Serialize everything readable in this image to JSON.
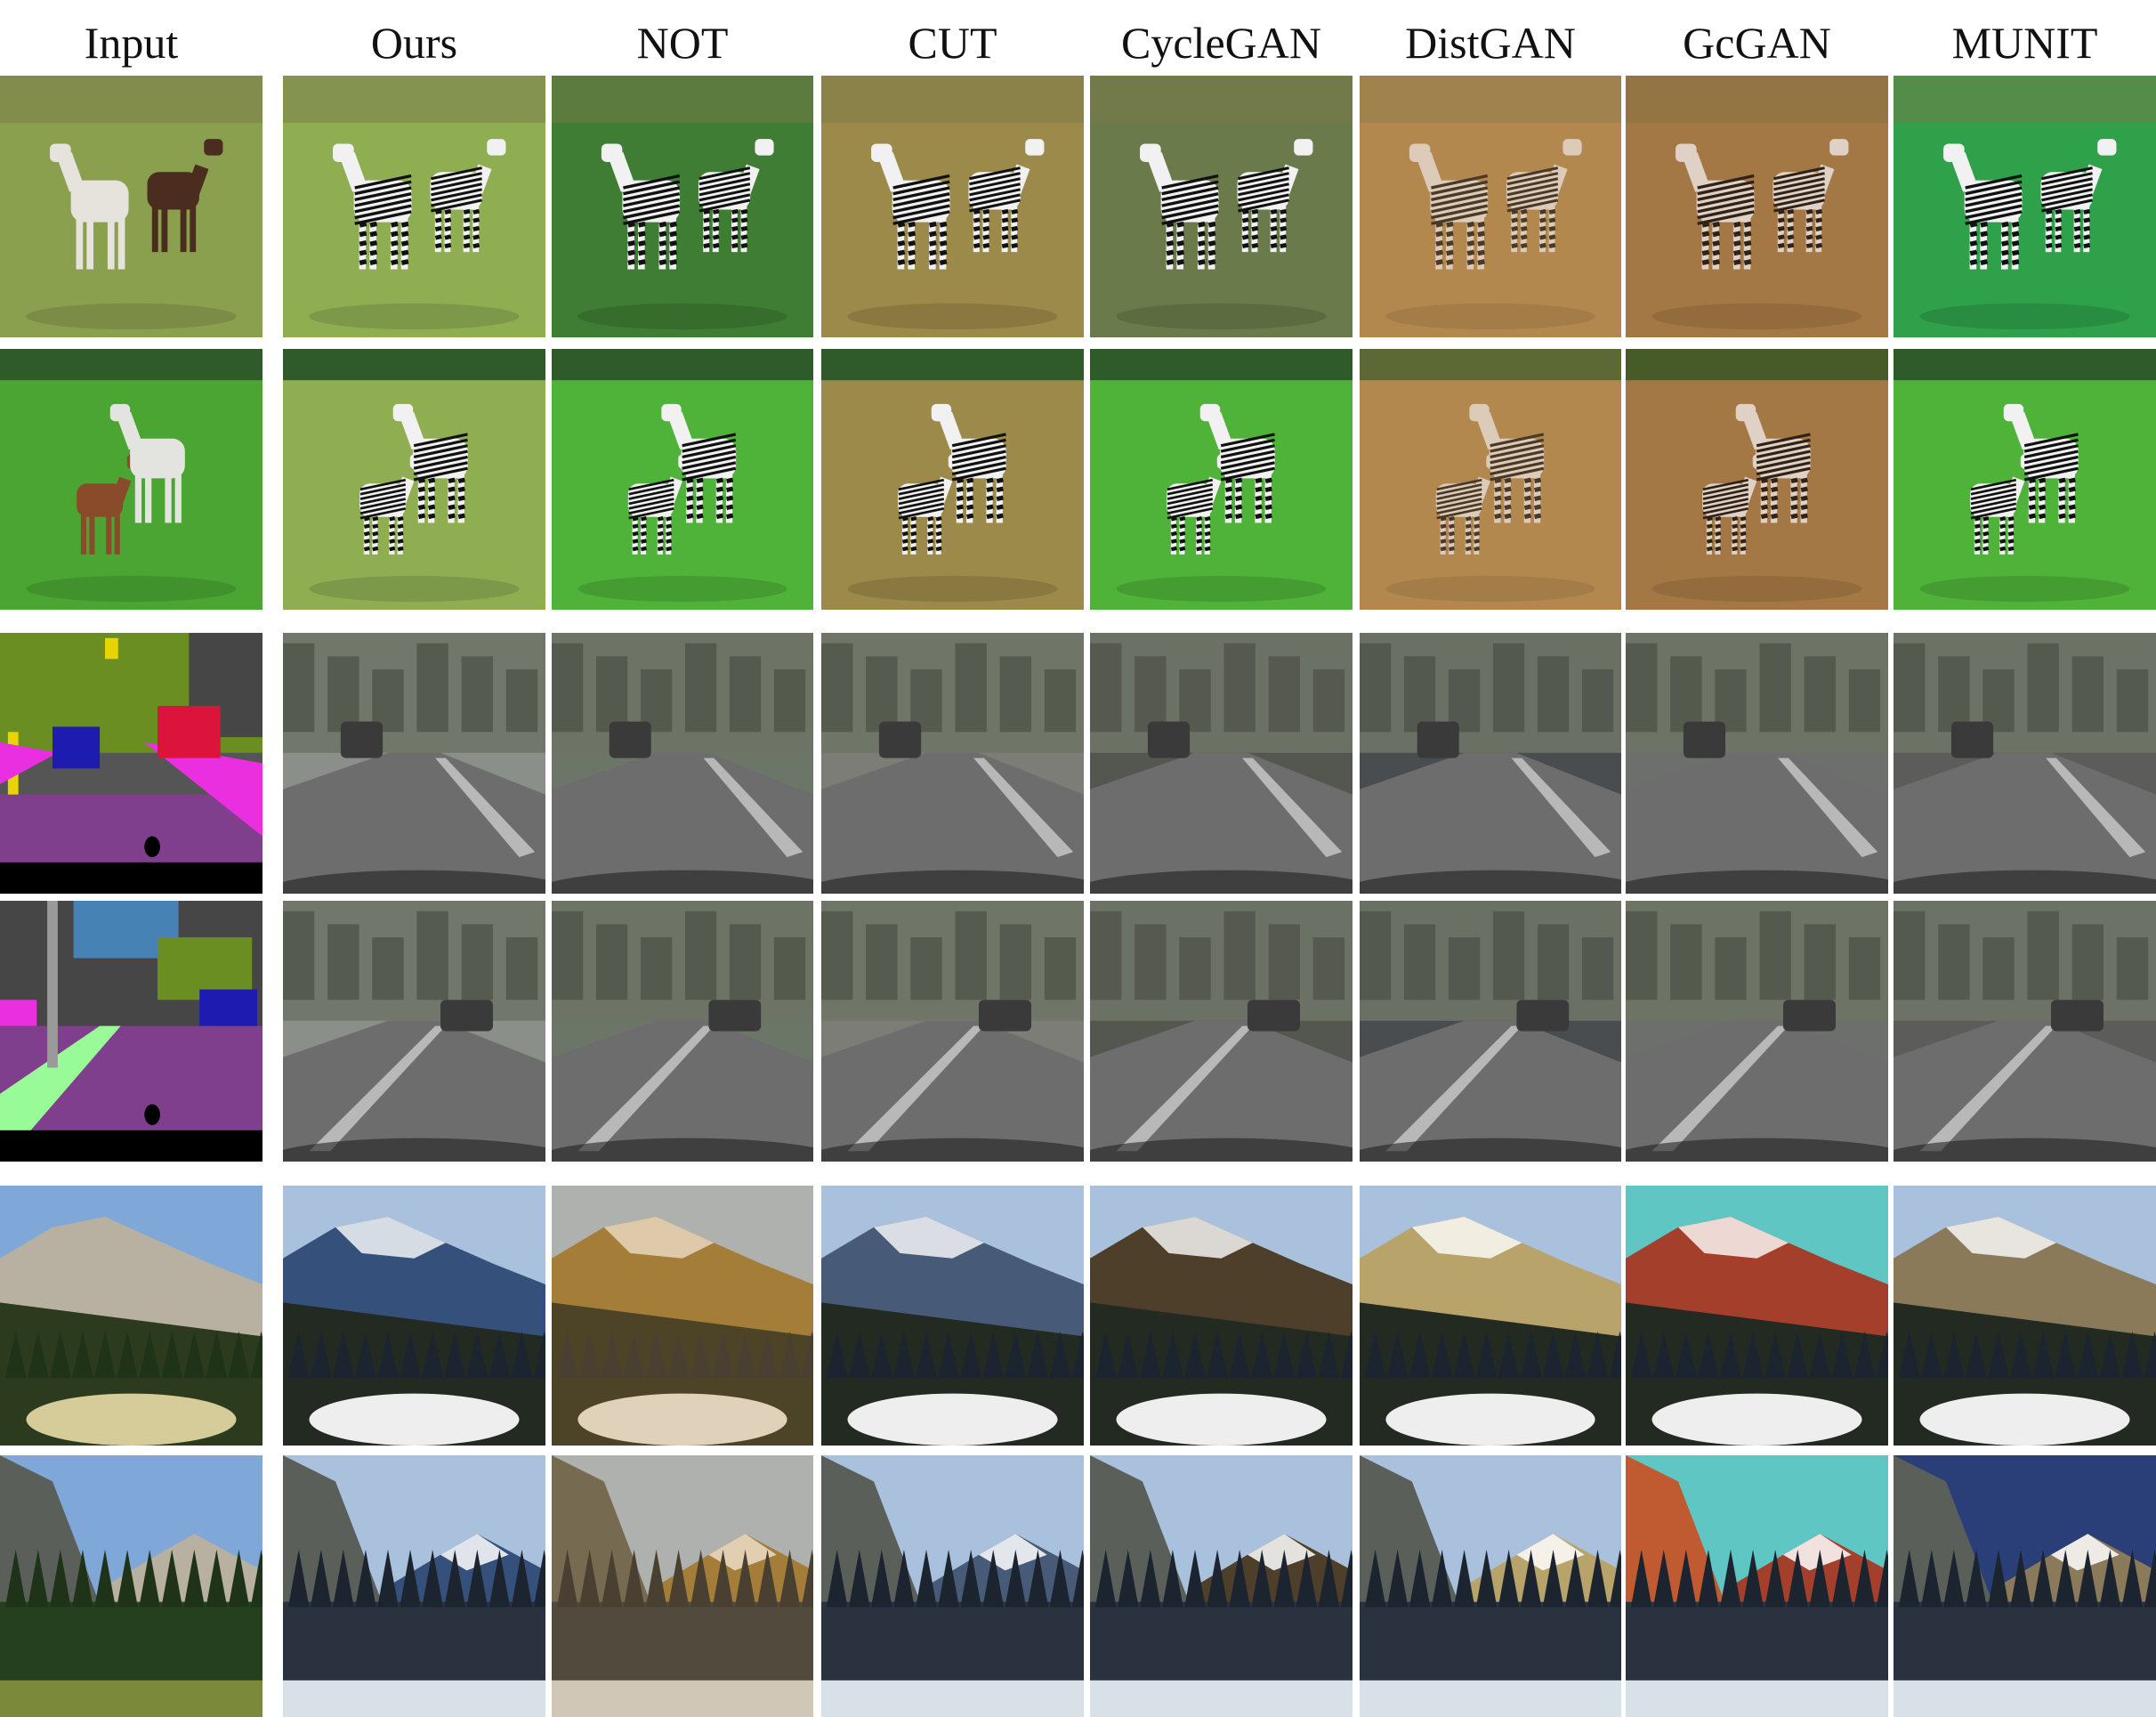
{
  "headers": [
    "Input",
    "Ours",
    "NOT",
    "CUT",
    "CycleGAN",
    "DistGAN",
    "GcGAN",
    "MUNIT"
  ],
  "rows": [
    {
      "id": "horse-pair-grazing",
      "input_kind": "photo",
      "input_subject": "horses",
      "output_subject": "zebras"
    },
    {
      "id": "horse-pair-field",
      "input_kind": "photo",
      "input_subject": "horses",
      "output_subject": "zebras"
    },
    {
      "id": "street-seg-1",
      "input_kind": "segmentation-map",
      "input_subject": "street labels",
      "output_subject": "street photo"
    },
    {
      "id": "street-seg-2",
      "input_kind": "segmentation-map",
      "input_subject": "street labels",
      "output_subject": "street photo"
    },
    {
      "id": "mountain-1",
      "input_kind": "photo",
      "input_subject": "summer mountain",
      "output_subject": "winter mountain"
    },
    {
      "id": "mountain-2",
      "input_kind": "photo",
      "input_subject": "summer valley",
      "output_subject": "winter valley"
    }
  ],
  "palette": {
    "grass": "#8fae52",
    "bright_grass": "#4fb33a",
    "sky": "#a9c9e6",
    "road": "#6d6d6d",
    "seg_purple": "#7f3f8c",
    "seg_magenta": "#ea2fe0",
    "seg_green": "#6b8e23",
    "seg_gray": "#464646",
    "seg_blue": "#1d1bb0",
    "seg_red": "#dc143c",
    "seg_yellow": "#e8d400",
    "seg_lightgreen": "#98fb98",
    "seg_skyblue": "#4682b4"
  }
}
